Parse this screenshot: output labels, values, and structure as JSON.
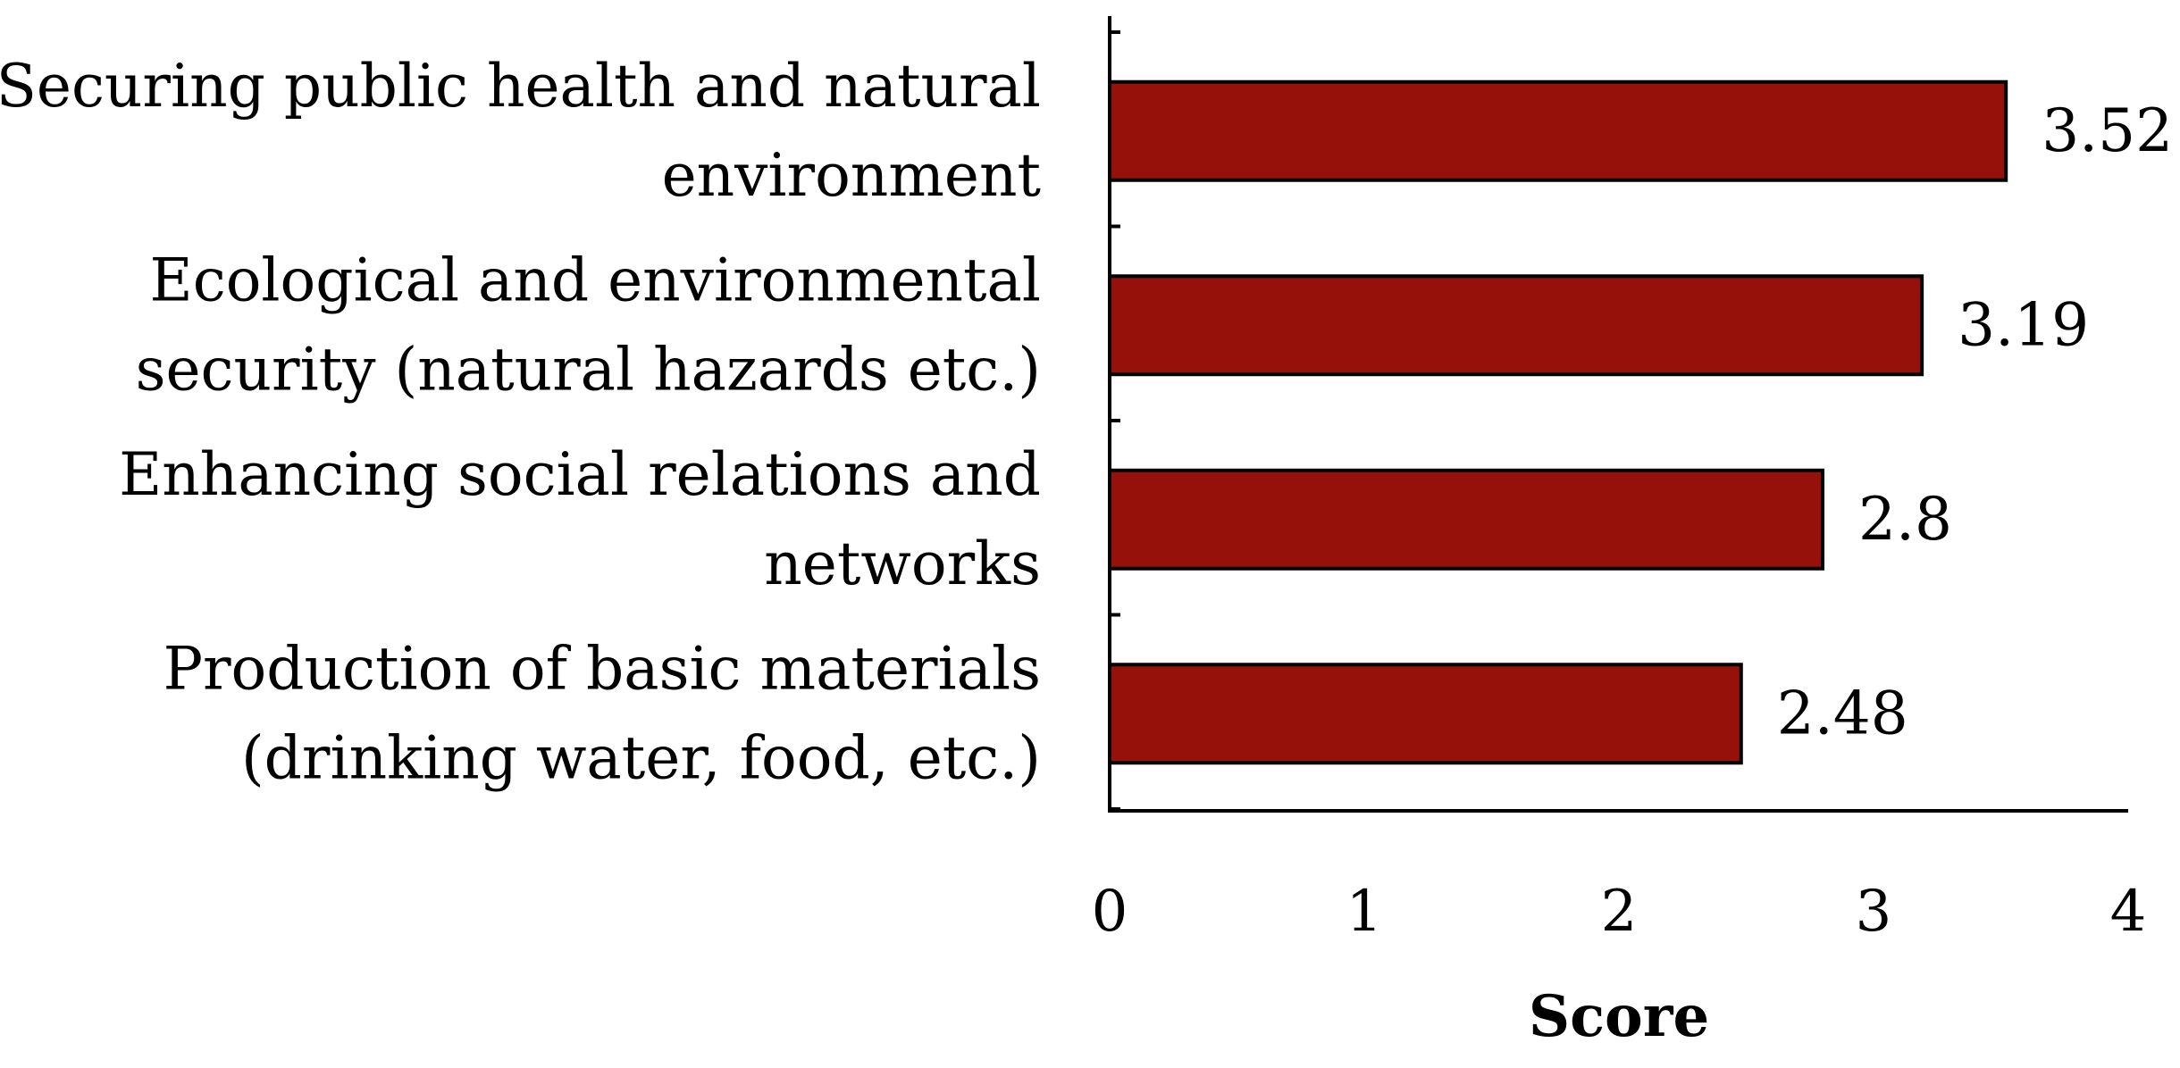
{
  "chart_data": {
    "type": "bar",
    "orientation": "horizontal",
    "categories": [
      [
        "Securing public health and natural",
        "environment"
      ],
      [
        "Ecological and environmental",
        "security (natural hazards etc.)"
      ],
      [
        "Enhancing social relations and",
        "networks"
      ],
      [
        "Production of basic materials",
        "(drinking water, food, etc.)"
      ]
    ],
    "values": [
      3.52,
      3.19,
      2.8,
      2.48
    ],
    "value_labels": [
      "3.52",
      "3.19",
      "2.8",
      "2.48"
    ],
    "xlabel": "Score",
    "ylabel": "",
    "xlim": [
      0,
      4
    ],
    "xticks": [
      "0",
      "1",
      "2",
      "3",
      "4"
    ],
    "grid": false,
    "legend": "none",
    "bar_color": "#951109",
    "bar_edge_color": "#000000"
  }
}
